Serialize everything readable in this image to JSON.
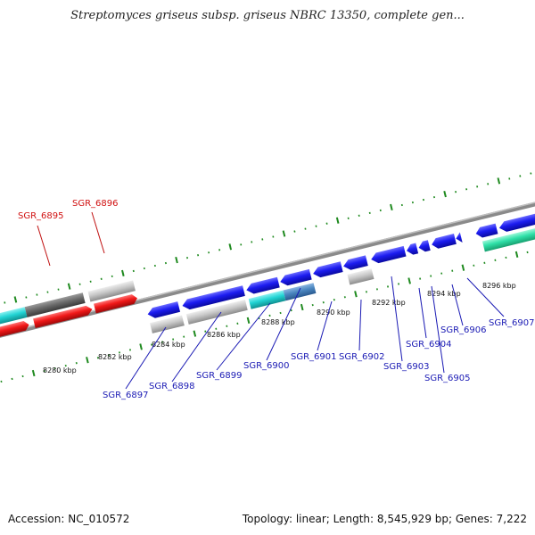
{
  "header": {
    "title": "Streptomyces griseus subsp. griseus NBRC 13350, complete gen..."
  },
  "footer": {
    "accession": "Accession: NC_010572",
    "summary": "Topology: linear; Length: 8,545,929 bp; Genes: 7,222"
  },
  "ruler_ticks": [
    "8280 kbp",
    "8282 kbp",
    "8284 kbp",
    "8286 kbp",
    "8288 kbp",
    "8290 kbp",
    "8292 kbp",
    "8294 kbp",
    "8296 kbp"
  ],
  "gene_labels": [
    "SGR_6895",
    "SGR_6896",
    "SGR_6897",
    "SGR_6898",
    "SGR_6899",
    "SGR_6900",
    "SGR_6901",
    "SGR_6902",
    "SGR_6903",
    "SGR_6904",
    "SGR_6905",
    "SGR_6906",
    "SGR_6907"
  ],
  "colors": {
    "backbone": "#8a8a8a",
    "tick_green": "#1f8a1f",
    "label_blue": "#1a1ab4",
    "label_red": "#d01010",
    "gene_blue": "#1c1cf0",
    "gene_red": "#f01818",
    "gene_cyan": "#22d4d4",
    "gene_steel": "#4a86c0",
    "gene_gray": "#c8c8c8",
    "gene_dark": "#6a6a6a",
    "gene_mint": "#2fe0a8"
  }
}
